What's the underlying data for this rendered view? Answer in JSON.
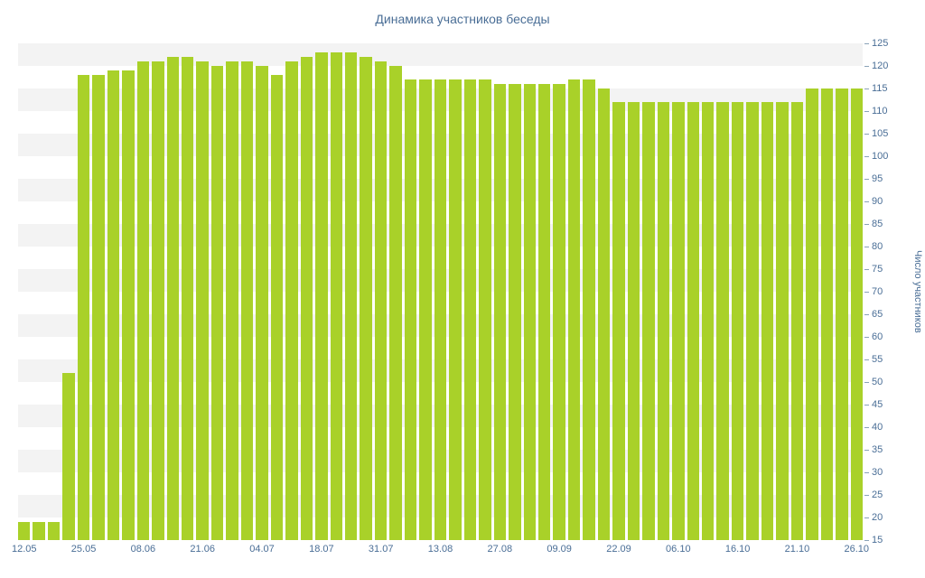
{
  "chart_data": {
    "type": "bar",
    "title": "Динамика участников беседы",
    "xlabel": "",
    "ylabel": "Число участников",
    "ylim": [
      15,
      125
    ],
    "y_tick_step": 5,
    "grid": "horizontal-stripes",
    "legend": "none",
    "bar_color": "#a9d129",
    "stripe_color": "#f3f3f3",
    "text_color": "#4a6e96",
    "x_tick_labels": [
      "12.05",
      "25.05",
      "08.06",
      "21.06",
      "04.07",
      "18.07",
      "31.07",
      "13.08",
      "27.08",
      "09.09",
      "22.09",
      "06.10",
      "16.10",
      "21.10",
      "26.10"
    ],
    "x_tick_every": 4,
    "values": [
      19,
      19,
      19,
      52,
      118,
      118,
      119,
      119,
      121,
      121,
      122,
      122,
      121,
      120,
      121,
      121,
      120,
      118,
      121,
      122,
      123,
      123,
      123,
      122,
      121,
      120,
      117,
      117,
      117,
      117,
      117,
      117,
      116,
      116,
      116,
      116,
      116,
      117,
      117,
      115,
      112,
      112,
      112,
      112,
      112,
      112,
      112,
      112,
      112,
      112,
      112,
      112,
      112,
      115,
      115,
      115,
      115
    ]
  }
}
